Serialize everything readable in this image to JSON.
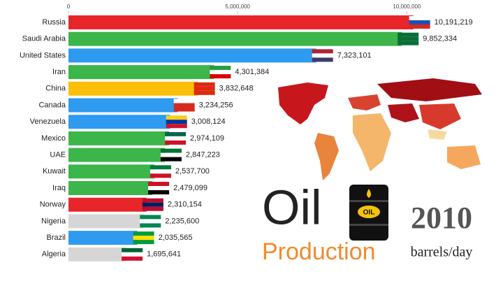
{
  "chart_data": {
    "type": "bar",
    "orientation": "horizontal",
    "categories": [
      "Russia",
      "Saudi Arabia",
      "United States",
      "Iran",
      "China",
      "Canada",
      "Venezuela",
      "Mexico",
      "UAE",
      "Kuwait",
      "Iraq",
      "Norway",
      "Nigeria",
      "Brazil",
      "Algeria"
    ],
    "values": [
      10191219,
      9852334,
      7323101,
      4301384,
      3832648,
      3234256,
      3008124,
      2974109,
      2847223,
      2537700,
      2479099,
      2310154,
      2235600,
      2035565,
      1695641
    ],
    "value_labels": [
      "10,191,219",
      "9,852,334",
      "7,323,101",
      "4,301,384",
      "3,832,648",
      "3,234,256",
      "3,008,124",
      "2,974,109",
      "2,847,223",
      "2,537,700",
      "2,479,099",
      "2,310,154",
      "2,235,600",
      "2,035,565",
      "1,695,641"
    ],
    "colors": [
      "#e8262a",
      "#3cb54a",
      "#2e9af0",
      "#3cb54a",
      "#fbbf0a",
      "#2e9af0",
      "#2e9af0",
      "#3cb54a",
      "#3cb54a",
      "#3cb54a",
      "#3cb54a",
      "#e8262a",
      "#d6d6d6",
      "#2e9af0",
      "#d6d6d6"
    ],
    "xlim": [
      0,
      12800000
    ],
    "xticks": [
      0,
      {
        "value": 5000000,
        "label": "5,000,000"
      },
      {
        "value": 10000000,
        "label": "10,000,000"
      }
    ]
  },
  "overlay": {
    "title": "Oil",
    "subtitle": "Production",
    "year": "2010",
    "unit": "barrels/day",
    "barrel_label": "OIL"
  }
}
